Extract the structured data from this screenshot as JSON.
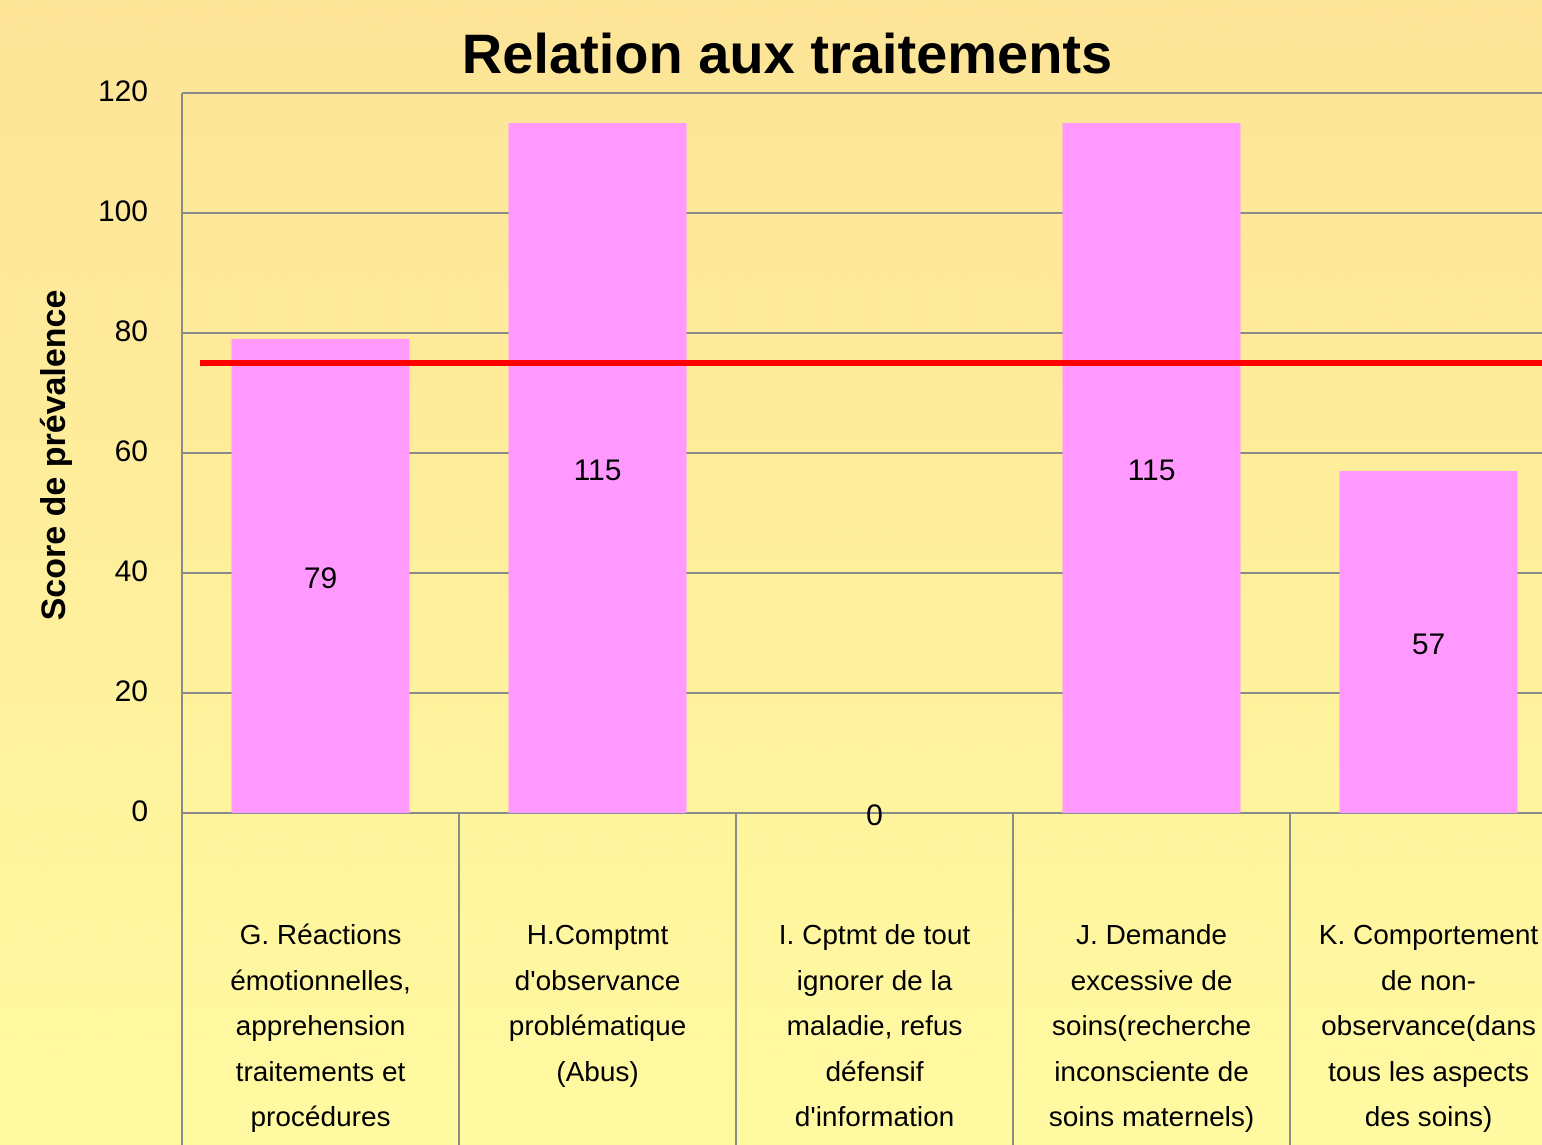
{
  "chart_data": {
    "type": "bar",
    "title": "Relation aux traitements",
    "y_label": "Score de prévalence",
    "categories": [
      "G. Réactions\némotionnelles,\napprehension\ntraitements et\nprocédures",
      "H.Comptmt\nd'observance\nproblématique\n(Abus)",
      "I. Cptmt de tout\nignorer de la\nmaladie, refus\ndéfensif\nd'information",
      "J. Demande\nexcessive de\nsoins(recherche\ninconsciente de\nsoins maternels)",
      "K. Comportement\nde non-\nobservance(dans\ntous les aspects\ndes soins)"
    ],
    "values": [
      79,
      115,
      0,
      115,
      57
    ],
    "color": "#ff99ff",
    "ylim": [
      0,
      120
    ],
    "yticks": [
      0,
      20,
      40,
      60,
      80,
      100,
      120
    ],
    "grid": true,
    "reference_line": {
      "value": 75,
      "color": "#ff0000"
    }
  }
}
